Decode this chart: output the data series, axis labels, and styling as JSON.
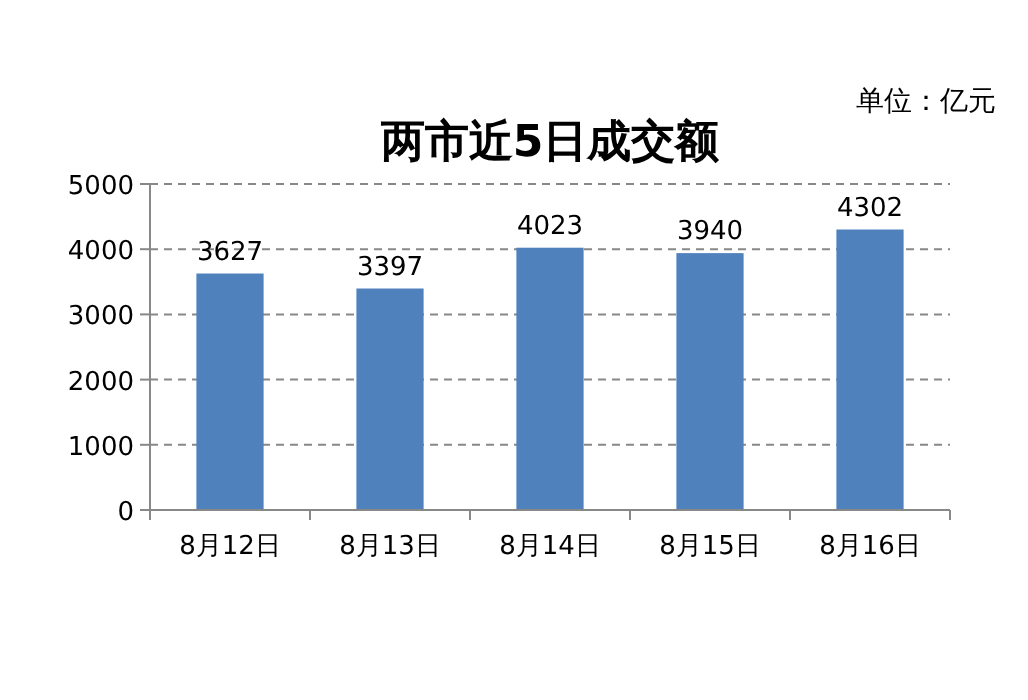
{
  "chart_data": {
    "type": "bar",
    "title": "两市近5日成交额",
    "annotations": [
      "单位：亿元"
    ],
    "categories": [
      "8月12日",
      "8月13日",
      "8月14日",
      "8月15日",
      "8月16日"
    ],
    "values": [
      3627,
      3397,
      4023,
      3940,
      4302
    ],
    "color": "#4f81bd",
    "ylim": [
      0,
      5000
    ],
    "yticks": [
      0,
      1000,
      2000,
      3000,
      4000,
      5000
    ],
    "grid": "y",
    "data_labels": true
  }
}
